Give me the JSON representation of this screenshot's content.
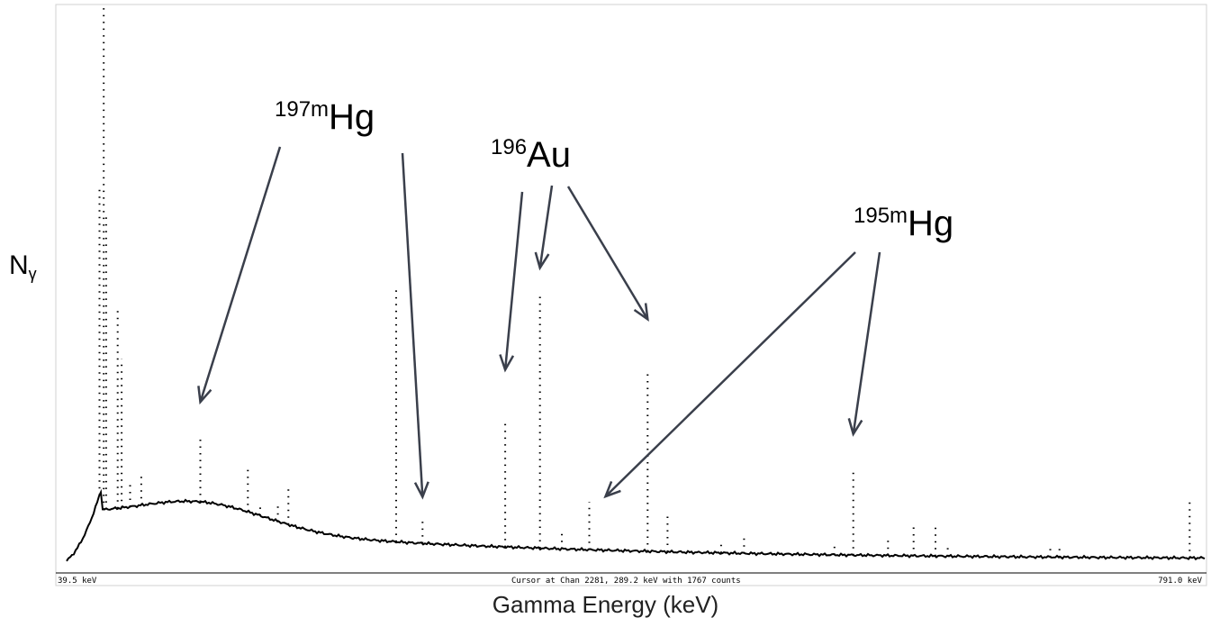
{
  "chart_data": {
    "type": "scatter",
    "xlabel": "Gamma Energy (keV)",
    "ylabel": "Nγ",
    "ylabel_main": "N",
    "ylabel_sub": "γ",
    "x_range_keV": [
      39.5,
      791.0
    ],
    "status": {
      "left": "39.5 keV",
      "center": "Cursor at Chan 2281, 289.2 keV with 1767 counts",
      "right": "791.0 keV"
    },
    "grid": false,
    "legend": "none",
    "line_color": "#000000",
    "arrow_color": "#3a3f4b",
    "annotations": [
      {
        "sup": "197m",
        "element": "Hg",
        "label": "197mHg",
        "peaks_keV": [
          133.9,
          279.0
        ]
      },
      {
        "sup": "196",
        "element": "Au",
        "label": "196Au",
        "peaks_keV": [
          333.0,
          355.7,
          426.0
        ]
      },
      {
        "sup": "195m",
        "element": "Hg",
        "label": "195mHg",
        "peaks_keV": [
          387.9,
          560.3
        ]
      }
    ],
    "peaks": [
      {
        "keV": 68.0,
        "height": 0.58
      },
      {
        "keV": 70.8,
        "height": 0.95
      },
      {
        "keV": 72.4,
        "height": 0.55
      },
      {
        "keV": 79.9,
        "height": 0.38
      },
      {
        "keV": 82.5,
        "height": 0.28
      },
      {
        "keV": 88.0,
        "height": 0.05
      },
      {
        "keV": 95.3,
        "height": 0.06
      },
      {
        "keV": 133.9,
        "height": 0.12
      },
      {
        "keV": 164.9,
        "height": 0.08
      },
      {
        "keV": 173.0,
        "height": 0.02
      },
      {
        "keV": 184.5,
        "height": 0.03
      },
      {
        "keV": 191.4,
        "height": 0.07
      },
      {
        "keV": 261.8,
        "height": 0.48
      },
      {
        "keV": 279.0,
        "height": 0.05
      },
      {
        "keV": 333.0,
        "height": 0.24
      },
      {
        "keV": 355.7,
        "height": 0.48
      },
      {
        "keV": 370.0,
        "height": 0.03
      },
      {
        "keV": 387.9,
        "height": 0.09
      },
      {
        "keV": 426.0,
        "height": 0.34
      },
      {
        "keV": 439.0,
        "height": 0.07
      },
      {
        "keV": 474.0,
        "height": 0.02
      },
      {
        "keV": 489.0,
        "height": 0.03
      },
      {
        "keV": 548.0,
        "height": 0.02
      },
      {
        "keV": 560.3,
        "height": 0.16
      },
      {
        "keV": 583.0,
        "height": 0.03
      },
      {
        "keV": 599.7,
        "height": 0.06
      },
      {
        "keV": 614.0,
        "height": 0.06
      },
      {
        "keV": 622.0,
        "height": 0.02
      },
      {
        "keV": 689.0,
        "height": 0.02
      },
      {
        "keV": 695.0,
        "height": 0.02
      },
      {
        "keV": 780.0,
        "height": 0.11
      }
    ]
  }
}
